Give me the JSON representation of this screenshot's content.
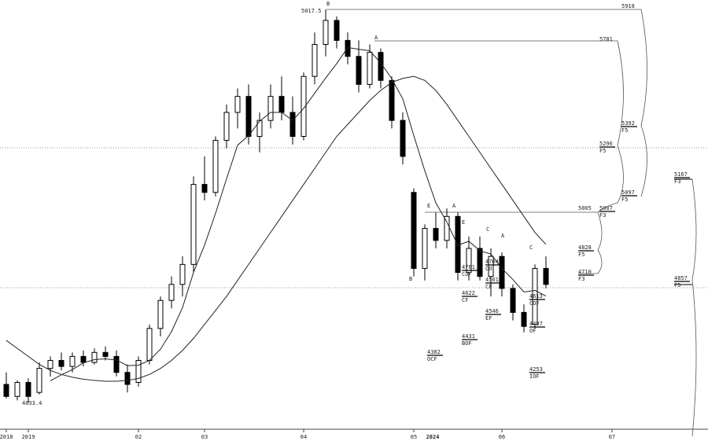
{
  "chart_data": {
    "type": "candlestick",
    "categories": [
      "2018",
      null,
      "2019",
      null,
      null,
      null,
      null,
      null,
      null,
      null,
      null,
      null,
      "02",
      null,
      null,
      null,
      null,
      null,
      "03",
      null,
      null,
      null,
      null,
      null,
      null,
      null,
      null,
      "04",
      null,
      null,
      null,
      null,
      null,
      null,
      null,
      null,
      null,
      "05",
      null,
      null,
      null,
      null,
      null,
      null,
      null,
      "06",
      null,
      null,
      null,
      null,
      null,
      null,
      null,
      null,
      null,
      "07"
    ],
    "year_label": "2024",
    "ylim": [
      3970,
      5041
    ],
    "open": [
      4080,
      4050,
      4085,
      4060,
      4120,
      4140,
      4125,
      4150,
      4135,
      4160,
      4150,
      4110,
      4085,
      4140,
      4220,
      4290,
      4330,
      4380,
      4580,
      4560,
      4690,
      4760,
      4800,
      4700,
      4740,
      4800,
      4760,
      4700,
      4850,
      4930,
      4990,
      4940,
      4900,
      4830,
      4910,
      4840,
      4740,
      4560,
      4370,
      4470,
      4440,
      4500,
      4360,
      4420,
      4350,
      4400,
      4320,
      4260,
      4230,
      4370,
      null,
      null,
      null,
      null,
      null,
      null
    ],
    "high": [
      4110,
      4090,
      4095,
      4135,
      4150,
      4160,
      4160,
      4165,
      4170,
      4175,
      4165,
      4130,
      4150,
      4230,
      4300,
      4350,
      4400,
      4600,
      4650,
      4700,
      4780,
      4820,
      4830,
      4760,
      4830,
      4850,
      4800,
      4860,
      4960,
      5017.5,
      5000,
      4960,
      4940,
      4930,
      4920,
      4850,
      4760,
      4570,
      4480,
      4510,
      4520,
      4510,
      4450,
      4450,
      4420,
      4410,
      4330,
      4280,
      4380,
      4400,
      null,
      null,
      null,
      null,
      null,
      null
    ],
    "low": [
      4045,
      4040,
      4033.4,
      4055,
      4100,
      4115,
      4110,
      4125,
      4130,
      4140,
      4100,
      4060,
      4075,
      4130,
      4200,
      4270,
      4300,
      4360,
      4540,
      4550,
      4670,
      4720,
      4680,
      4660,
      4720,
      4740,
      4680,
      4690,
      4830,
      4900,
      4920,
      4880,
      4810,
      4820,
      4820,
      4720,
      4630,
      4350,
      4340,
      4420,
      4420,
      4340,
      4340,
      4340,
      4300,
      4300,
      4240,
      4210,
      4220,
      4320,
      null,
      null,
      null,
      null,
      null,
      null
    ],
    "close": [
      4050,
      4085,
      4050,
      4120,
      4140,
      4125,
      4150,
      4135,
      4160,
      4150,
      4110,
      4080,
      4140,
      4220,
      4290,
      4330,
      4380,
      4580,
      4560,
      4690,
      4760,
      4800,
      4700,
      4740,
      4800,
      4760,
      4700,
      4850,
      4930,
      4990,
      4940,
      4900,
      4830,
      4910,
      4840,
      4740,
      4650,
      4370,
      4470,
      4440,
      4500,
      4360,
      4420,
      4350,
      4400,
      4320,
      4260,
      4225,
      4370,
      4330,
      null,
      null,
      null,
      null,
      null,
      null
    ],
    "ma_short": [
      null,
      null,
      null,
      null,
      4089,
      4104,
      4117,
      4134,
      4142,
      4144,
      4141,
      4127,
      4128,
      4140,
      4168,
      4212,
      4272,
      4360,
      4428,
      4508,
      4594,
      4678,
      4702,
      4738,
      4760,
      4760,
      4740,
      4770,
      4808,
      4846,
      4882,
      4922,
      4918,
      4914,
      4884,
      4844,
      4794,
      4702,
      4614,
      4534,
      4486,
      4428,
      4438,
      4414,
      4406,
      4370,
      4342,
      4311,
      4315,
      4301,
      null,
      null,
      null,
      null,
      null,
      null
    ],
    "ma_long": [
      4190,
      4170,
      4150,
      4130,
      4115,
      4105,
      4098,
      4093,
      4090,
      4088,
      4088,
      4090,
      4095,
      4105,
      4120,
      4140,
      4165,
      4195,
      4230,
      4265,
      4300,
      4340,
      4380,
      4420,
      4460,
      4500,
      4540,
      4580,
      4620,
      4660,
      4700,
      4730,
      4760,
      4790,
      4815,
      4835,
      4845,
      4850,
      4840,
      4815,
      4780,
      4740,
      4700,
      4660,
      4620,
      4580,
      4540,
      4500,
      4460,
      4430,
      null,
      null,
      null,
      null,
      null,
      null
    ],
    "annotations": [
      {
        "text": "5017.5"
      },
      {
        "text": "B"
      },
      {
        "text": "5918"
      },
      {
        "text": "A"
      },
      {
        "text": "5781"
      },
      {
        "text": "5392",
        "tag": "F5"
      },
      {
        "text": "5296",
        "tag": "F5"
      },
      {
        "text": "5097",
        "tag": "F5"
      },
      {
        "text": "5007",
        "tag": "F3"
      },
      {
        "text": "5005"
      },
      {
        "text": "4828",
        "tag": "F5"
      },
      {
        "text": "4710",
        "tag": "F3"
      },
      {
        "text": "5167",
        "tag": "F3"
      },
      {
        "text": "4857",
        "tag": "F5"
      },
      {
        "text": "4781",
        "tag": "COF"
      },
      {
        "text": "4764",
        "tag": "CO"
      },
      {
        "text": "4561",
        "tag": "CF"
      },
      {
        "text": "4622",
        "tag": "CF"
      },
      {
        "text": "4546",
        "tag": "EF"
      },
      {
        "text": "4431",
        "tag": "BOF"
      },
      {
        "text": "4382",
        "tag": "OCF"
      },
      {
        "text": "4613",
        "tag": "COF"
      },
      {
        "text": "4487",
        "tag": "OF"
      },
      {
        "text": "4253",
        "tag": "IOF"
      },
      {
        "text": "4033.4"
      },
      {
        "text": "B"
      },
      {
        "text": "A"
      },
      {
        "text": "E"
      },
      {
        "text": "C"
      },
      {
        "text": "A"
      },
      {
        "text": "C"
      },
      {
        "text": "E"
      }
    ]
  }
}
